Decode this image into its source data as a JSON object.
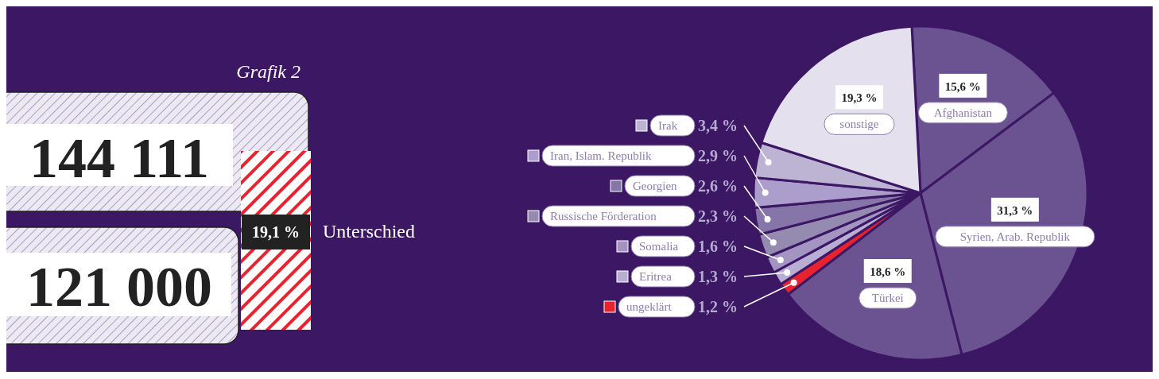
{
  "chart_data": [
    {
      "type": "other",
      "title": "Grafik 2",
      "annotations": [
        "144 111",
        "121 000",
        "19,1 %",
        "Unterschied"
      ]
    },
    {
      "type": "pie",
      "categories": [
        "Afghanistan",
        "Syrien, Arab. Republik",
        "Türkei",
        "ungeklärt",
        "Eritrea",
        "Somalia",
        "Russische Förderation",
        "Georgien",
        "Iran, Islam. Republik",
        "Irak",
        "sonstige"
      ],
      "values": [
        15.6,
        31.3,
        18.6,
        1.2,
        1.3,
        1.6,
        2.3,
        2.6,
        2.9,
        3.4,
        19.3
      ],
      "value_labels": [
        "15,6 %",
        "31,3 %",
        "18,6 %",
        "1,2 %",
        "1,3 %",
        "1,6 %",
        "2,3 %",
        "2,6 %",
        "2,9 %",
        "3,4 %",
        "19,3 %"
      ],
      "colors": [
        "#6b5290",
        "#6b5290",
        "#6b5290",
        "#e8222e",
        "#b8aed3",
        "#a494c2",
        "#958ab0",
        "#8675a8",
        "#ab9dcc",
        "#bdb3d3",
        "#e4e0ee"
      ],
      "legend": "left"
    }
  ]
}
